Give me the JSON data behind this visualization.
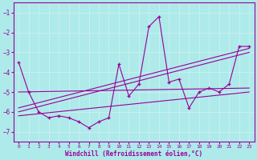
{
  "xlabel": "Windchill (Refroidissement éolien,°C)",
  "xlim": [
    -0.5,
    23.5
  ],
  "ylim": [
    -7.5,
    -0.5
  ],
  "yticks": [
    -7,
    -6,
    -5,
    -4,
    -3,
    -2,
    -1
  ],
  "xticks": [
    0,
    1,
    2,
    3,
    4,
    5,
    6,
    7,
    8,
    9,
    10,
    11,
    12,
    13,
    14,
    15,
    16,
    17,
    18,
    19,
    20,
    21,
    22,
    23
  ],
  "bg_color": "#aeeaea",
  "line_color": "#990099",
  "grid_color": "#c8f0f0",
  "series": [
    [
      0,
      -3.5
    ],
    [
      1,
      -5.0
    ],
    [
      2,
      -6.0
    ],
    [
      3,
      -6.3
    ],
    [
      4,
      -6.2
    ],
    [
      5,
      -6.3
    ],
    [
      6,
      -6.5
    ],
    [
      7,
      -6.8
    ],
    [
      8,
      -6.5
    ],
    [
      9,
      -6.3
    ],
    [
      10,
      -3.6
    ],
    [
      11,
      -5.2
    ],
    [
      12,
      -4.6
    ],
    [
      13,
      -1.7
    ],
    [
      14,
      -1.2
    ],
    [
      15,
      -4.5
    ],
    [
      16,
      -4.35
    ],
    [
      17,
      -5.8
    ],
    [
      18,
      -5.0
    ],
    [
      19,
      -4.8
    ],
    [
      20,
      -5.0
    ],
    [
      21,
      -4.6
    ],
    [
      22,
      -2.7
    ],
    [
      23,
      -2.7
    ]
  ],
  "trend_lines": [
    {
      "x": [
        0,
        23
      ],
      "y": [
        -5.0,
        -4.8
      ]
    },
    {
      "x": [
        0,
        23
      ],
      "y": [
        -5.8,
        -2.8
      ]
    },
    {
      "x": [
        0,
        23
      ],
      "y": [
        -6.2,
        -5.0
      ]
    },
    {
      "x": [
        0,
        23
      ],
      "y": [
        -6.0,
        -3.0
      ]
    }
  ]
}
